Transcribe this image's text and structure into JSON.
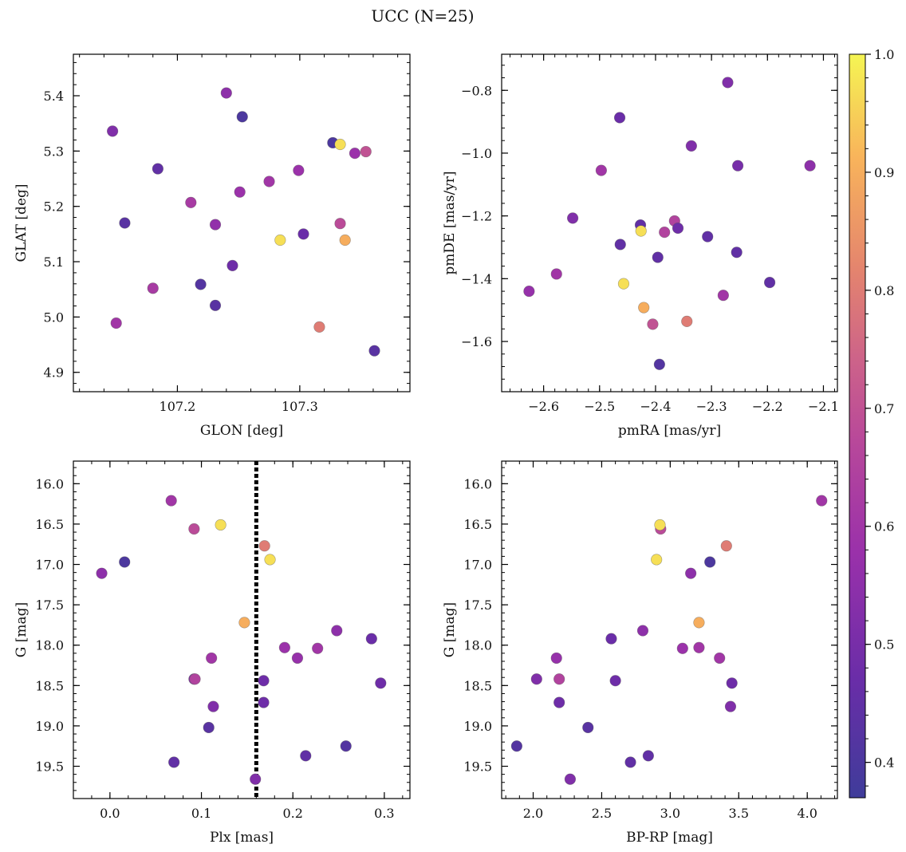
{
  "figure": {
    "title": "UCC (N=25)"
  },
  "colorbar": {
    "min": 0.37,
    "max": 1.0,
    "ticks": [
      0.4,
      0.5,
      0.6,
      0.7,
      0.8,
      0.9,
      1.0
    ],
    "tick_labels": [
      "0.4",
      "0.5",
      "0.6",
      "0.7",
      "0.8",
      "0.9",
      "1.0"
    ],
    "colormap": "plasma"
  },
  "chart_data": [
    {
      "type": "scatter",
      "id": "panel-glon-glat",
      "xlabel": "GLON [deg]",
      "ylabel": "GLAT [deg]",
      "xlim": [
        107.115,
        107.39
      ],
      "ylim": [
        4.865,
        5.475
      ],
      "xticks": [
        107.2,
        107.3
      ],
      "xtick_labels": [
        "107.2",
        "107.3"
      ],
      "yticks": [
        4.9,
        5.0,
        5.1,
        5.2,
        5.3,
        5.4
      ],
      "ytick_labels": [
        "4.9",
        "5.0",
        "5.1",
        "5.2",
        "5.3",
        "5.4"
      ],
      "points": [
        {
          "x": 107.147,
          "y": 5.336,
          "c": 0.52
        },
        {
          "x": 107.24,
          "y": 5.405,
          "c": 0.55
        },
        {
          "x": 107.253,
          "y": 5.362,
          "c": 0.4
        },
        {
          "x": 107.327,
          "y": 5.315,
          "c": 0.4
        },
        {
          "x": 107.333,
          "y": 5.312,
          "c": 0.97
        },
        {
          "x": 107.345,
          "y": 5.296,
          "c": 0.58
        },
        {
          "x": 107.354,
          "y": 5.299,
          "c": 0.7
        },
        {
          "x": 107.184,
          "y": 5.268,
          "c": 0.45
        },
        {
          "x": 107.299,
          "y": 5.265,
          "c": 0.58
        },
        {
          "x": 107.275,
          "y": 5.245,
          "c": 0.6
        },
        {
          "x": 107.251,
          "y": 5.226,
          "c": 0.58
        },
        {
          "x": 107.211,
          "y": 5.207,
          "c": 0.62
        },
        {
          "x": 107.157,
          "y": 5.17,
          "c": 0.43
        },
        {
          "x": 107.231,
          "y": 5.167,
          "c": 0.56
        },
        {
          "x": 107.333,
          "y": 5.169,
          "c": 0.68
        },
        {
          "x": 107.303,
          "y": 5.15,
          "c": 0.47
        },
        {
          "x": 107.284,
          "y": 5.139,
          "c": 0.97
        },
        {
          "x": 107.337,
          "y": 5.139,
          "c": 0.9
        },
        {
          "x": 107.245,
          "y": 5.093,
          "c": 0.48
        },
        {
          "x": 107.219,
          "y": 5.059,
          "c": 0.42
        },
        {
          "x": 107.18,
          "y": 5.052,
          "c": 0.62
        },
        {
          "x": 107.231,
          "y": 5.021,
          "c": 0.43
        },
        {
          "x": 107.15,
          "y": 4.989,
          "c": 0.6
        },
        {
          "x": 107.316,
          "y": 4.982,
          "c": 0.8
        },
        {
          "x": 107.361,
          "y": 4.939,
          "c": 0.43
        }
      ]
    },
    {
      "type": "scatter",
      "id": "panel-pm",
      "xlabel": "pmRA [mas/yr]",
      "ylabel": "pmDE [mas/yr]",
      "xlim": [
        -2.675,
        -2.075
      ],
      "ylim": [
        -1.76,
        -0.685
      ],
      "xticks": [
        -2.6,
        -2.5,
        -2.4,
        -2.3,
        -2.2,
        -2.1
      ],
      "xtick_labels": [
        "−2.6",
        "−2.5",
        "−2.4",
        "−2.3",
        "−2.2",
        "−2.1"
      ],
      "yticks": [
        -1.6,
        -1.4,
        -1.2,
        -1.0,
        -0.8
      ],
      "ytick_labels": [
        "−1.6",
        "−1.4",
        "−1.2",
        "−1.0",
        "−0.8"
      ],
      "points": [
        {
          "x": -2.271,
          "y": -0.775,
          "c": 0.52
        },
        {
          "x": -2.464,
          "y": -0.887,
          "c": 0.47
        },
        {
          "x": -2.336,
          "y": -0.977,
          "c": 0.52
        },
        {
          "x": -2.124,
          "y": -1.04,
          "c": 0.55
        },
        {
          "x": -2.253,
          "y": -1.04,
          "c": 0.5
        },
        {
          "x": -2.497,
          "y": -1.055,
          "c": 0.6
        },
        {
          "x": -2.548,
          "y": -1.207,
          "c": 0.52
        },
        {
          "x": -2.427,
          "y": -1.229,
          "c": 0.45
        },
        {
          "x": -2.426,
          "y": -1.248,
          "c": 0.97
        },
        {
          "x": -2.366,
          "y": -1.216,
          "c": 0.65
        },
        {
          "x": -2.36,
          "y": -1.239,
          "c": 0.48
        },
        {
          "x": -2.384,
          "y": -1.252,
          "c": 0.65
        },
        {
          "x": -2.307,
          "y": -1.266,
          "c": 0.45
        },
        {
          "x": -2.463,
          "y": -1.291,
          "c": 0.45
        },
        {
          "x": -2.255,
          "y": -1.316,
          "c": 0.45
        },
        {
          "x": -2.396,
          "y": -1.332,
          "c": 0.45
        },
        {
          "x": -2.577,
          "y": -1.385,
          "c": 0.6
        },
        {
          "x": -2.196,
          "y": -1.412,
          "c": 0.45
        },
        {
          "x": -2.457,
          "y": -1.416,
          "c": 0.97
        },
        {
          "x": -2.626,
          "y": -1.44,
          "c": 0.57
        },
        {
          "x": -2.279,
          "y": -1.453,
          "c": 0.6
        },
        {
          "x": -2.421,
          "y": -1.492,
          "c": 0.9
        },
        {
          "x": -2.344,
          "y": -1.536,
          "c": 0.8
        },
        {
          "x": -2.405,
          "y": -1.545,
          "c": 0.7
        },
        {
          "x": -2.393,
          "y": -1.673,
          "c": 0.42
        }
      ]
    },
    {
      "type": "scatter",
      "id": "panel-plx-g",
      "xlabel": "Plx [mas]",
      "ylabel": "G [mag]",
      "xlim": [
        -0.04,
        0.328
      ],
      "ylim": [
        19.9,
        15.72
      ],
      "xticks": [
        0.0,
        0.1,
        0.2,
        0.3
      ],
      "xtick_labels": [
        "0.0",
        "0.1",
        "0.2",
        "0.3"
      ],
      "yticks": [
        16.0,
        16.5,
        17.0,
        17.5,
        18.0,
        18.5,
        19.0,
        19.5
      ],
      "ytick_labels": [
        "16.0",
        "16.5",
        "17.0",
        "17.5",
        "18.0",
        "18.5",
        "19.0",
        "19.5"
      ],
      "vline": {
        "x": 0.16
      },
      "points": [
        {
          "x": 0.067,
          "y": 16.21,
          "c": 0.6
        },
        {
          "x": 0.092,
          "y": 16.56,
          "c": 0.68
        },
        {
          "x": 0.121,
          "y": 16.51,
          "c": 0.97
        },
        {
          "x": 0.169,
          "y": 16.77,
          "c": 0.8
        },
        {
          "x": 0.175,
          "y": 16.94,
          "c": 0.97
        },
        {
          "x": 0.016,
          "y": 16.97,
          "c": 0.4
        },
        {
          "x": -0.009,
          "y": 17.11,
          "c": 0.55
        },
        {
          "x": 0.147,
          "y": 17.72,
          "c": 0.9
        },
        {
          "x": 0.248,
          "y": 17.82,
          "c": 0.55
        },
        {
          "x": 0.286,
          "y": 17.92,
          "c": 0.47
        },
        {
          "x": 0.191,
          "y": 18.03,
          "c": 0.58
        },
        {
          "x": 0.227,
          "y": 18.04,
          "c": 0.6
        },
        {
          "x": 0.111,
          "y": 18.16,
          "c": 0.6
        },
        {
          "x": 0.205,
          "y": 18.16,
          "c": 0.57
        },
        {
          "x": 0.092,
          "y": 18.42,
          "c": 0.52
        },
        {
          "x": 0.093,
          "y": 18.42,
          "c": 0.65
        },
        {
          "x": 0.168,
          "y": 18.44,
          "c": 0.48
        },
        {
          "x": 0.296,
          "y": 18.47,
          "c": 0.48
        },
        {
          "x": 0.168,
          "y": 18.71,
          "c": 0.48
        },
        {
          "x": 0.113,
          "y": 18.76,
          "c": 0.52
        },
        {
          "x": 0.108,
          "y": 19.02,
          "c": 0.43
        },
        {
          "x": 0.258,
          "y": 19.25,
          "c": 0.42
        },
        {
          "x": 0.214,
          "y": 19.37,
          "c": 0.45
        },
        {
          "x": 0.07,
          "y": 19.45,
          "c": 0.45
        },
        {
          "x": 0.159,
          "y": 19.66,
          "c": 0.52
        }
      ]
    },
    {
      "type": "scatter",
      "id": "panel-color-mag",
      "xlabel": "BP-RP [mag]",
      "ylabel": "G [mag]",
      "xlim": [
        1.77,
        4.22
      ],
      "ylim": [
        19.9,
        15.72
      ],
      "xticks": [
        2.0,
        2.5,
        3.0,
        3.5,
        4.0
      ],
      "xtick_labels": [
        "2.0",
        "2.5",
        "3.0",
        "3.5",
        "4.0"
      ],
      "yticks": [
        16.0,
        16.5,
        17.0,
        17.5,
        18.0,
        18.5,
        19.0,
        19.5
      ],
      "ytick_labels": [
        "16.0",
        "16.5",
        "17.0",
        "17.5",
        "18.0",
        "18.5",
        "19.0",
        "19.5"
      ],
      "points": [
        {
          "x": 4.105,
          "y": 16.21,
          "c": 0.6
        },
        {
          "x": 2.93,
          "y": 16.56,
          "c": 0.68
        },
        {
          "x": 2.925,
          "y": 16.51,
          "c": 0.97
        },
        {
          "x": 3.41,
          "y": 16.77,
          "c": 0.8
        },
        {
          "x": 2.9,
          "y": 16.94,
          "c": 0.97
        },
        {
          "x": 3.29,
          "y": 16.97,
          "c": 0.4
        },
        {
          "x": 3.15,
          "y": 17.11,
          "c": 0.55
        },
        {
          "x": 3.21,
          "y": 17.72,
          "c": 0.9
        },
        {
          "x": 2.8,
          "y": 17.82,
          "c": 0.55
        },
        {
          "x": 2.57,
          "y": 17.92,
          "c": 0.47
        },
        {
          "x": 3.09,
          "y": 18.04,
          "c": 0.58
        },
        {
          "x": 3.21,
          "y": 18.03,
          "c": 0.6
        },
        {
          "x": 3.36,
          "y": 18.16,
          "c": 0.6
        },
        {
          "x": 2.17,
          "y": 18.16,
          "c": 0.57
        },
        {
          "x": 2.025,
          "y": 18.42,
          "c": 0.52
        },
        {
          "x": 2.19,
          "y": 18.42,
          "c": 0.65
        },
        {
          "x": 2.6,
          "y": 18.44,
          "c": 0.48
        },
        {
          "x": 3.45,
          "y": 18.47,
          "c": 0.48
        },
        {
          "x": 2.19,
          "y": 18.71,
          "c": 0.48
        },
        {
          "x": 3.44,
          "y": 18.76,
          "c": 0.52
        },
        {
          "x": 2.4,
          "y": 19.02,
          "c": 0.43
        },
        {
          "x": 1.88,
          "y": 19.25,
          "c": 0.42
        },
        {
          "x": 2.84,
          "y": 19.37,
          "c": 0.45
        },
        {
          "x": 2.71,
          "y": 19.45,
          "c": 0.45
        },
        {
          "x": 2.27,
          "y": 19.66,
          "c": 0.52
        }
      ]
    }
  ]
}
